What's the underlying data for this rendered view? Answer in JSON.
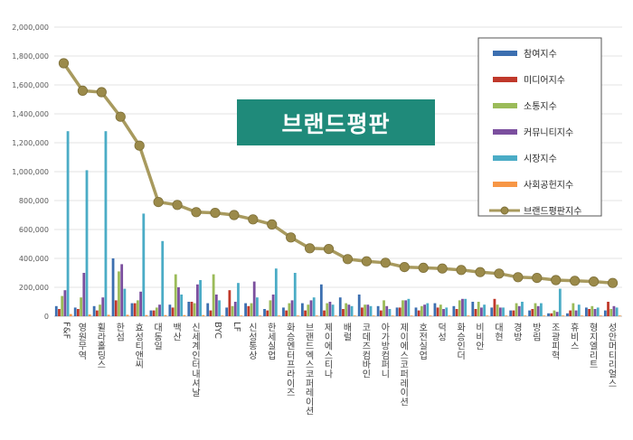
{
  "banner": {
    "text": "브랜드평판"
  },
  "chart_data": {
    "type": "bar",
    "title": "",
    "xlabel": "",
    "ylabel": "",
    "ylim": [
      0,
      2000000
    ],
    "yticks": [
      "0",
      "200,000",
      "400,000",
      "600,000",
      "800,000",
      "1,000,000",
      "1,200,000",
      "1,400,000",
      "1,600,000",
      "1,800,000",
      "2,000,000"
    ],
    "grid": true,
    "legend_position": "top-right",
    "categories": [
      "F&F",
      "영원무역",
      "휠라홀딩스",
      "한섬",
      "효성티앤씨",
      "대동일",
      "백산",
      "신세계인터내셔날",
      "BYC",
      "LF",
      "신성통상",
      "한세실업",
      "화승엔터프라이즈",
      "브랜드엑스코퍼레이션",
      "제이에스티나",
      "배럴",
      "코데즈컴바인",
      "아가방컴퍼니",
      "제이에스코퍼레이션",
      "호전실업",
      "덕성",
      "화승인더",
      "비비안",
      "대현",
      "경방",
      "방림",
      "조광피혁",
      "휴비스",
      "형지엘리트",
      "성안머티리얼스"
    ],
    "series": [
      {
        "name": "참여지수",
        "color": "#3c6fb0",
        "values": [
          70000,
          60000,
          70000,
          400000,
          90000,
          40000,
          80000,
          100000,
          90000,
          60000,
          90000,
          50000,
          60000,
          90000,
          220000,
          130000,
          150000,
          70000,
          60000,
          60000,
          90000,
          70000,
          100000,
          60000,
          40000,
          40000,
          20000,
          20000,
          60000,
          40000
        ]
      },
      {
        "name": "미디어지수",
        "color": "#c0392b",
        "values": [
          50000,
          50000,
          40000,
          110000,
          90000,
          40000,
          60000,
          100000,
          40000,
          180000,
          70000,
          40000,
          40000,
          40000,
          40000,
          50000,
          60000,
          40000,
          60000,
          40000,
          60000,
          50000,
          50000,
          120000,
          40000,
          50000,
          20000,
          40000,
          50000,
          100000
        ]
      },
      {
        "name": "소통지수",
        "color": "#9bbb59",
        "values": [
          140000,
          130000,
          80000,
          310000,
          110000,
          60000,
          290000,
          90000,
          290000,
          70000,
          90000,
          110000,
          90000,
          80000,
          90000,
          90000,
          80000,
          110000,
          110000,
          70000,
          80000,
          110000,
          100000,
          80000,
          90000,
          90000,
          40000,
          90000,
          70000,
          50000
        ]
      },
      {
        "name": "커뮤니티지수",
        "color": "#7b4f9e",
        "values": [
          180000,
          300000,
          130000,
          360000,
          170000,
          80000,
          200000,
          220000,
          150000,
          100000,
          240000,
          150000,
          110000,
          110000,
          100000,
          80000,
          80000,
          70000,
          110000,
          80000,
          50000,
          120000,
          60000,
          60000,
          70000,
          70000,
          30000,
          40000,
          50000,
          70000
        ]
      },
      {
        "name": "시장지수",
        "color": "#4bacc6",
        "values": [
          1280000,
          1010000,
          1280000,
          190000,
          710000,
          520000,
          150000,
          250000,
          110000,
          230000,
          130000,
          330000,
          300000,
          130000,
          80000,
          70000,
          70000,
          50000,
          120000,
          90000,
          60000,
          120000,
          80000,
          60000,
          100000,
          90000,
          190000,
          80000,
          60000,
          60000
        ]
      },
      {
        "name": "사회공헌지수",
        "color": "#f79646",
        "values": [
          15000,
          12000,
          10000,
          10000,
          8000,
          8000,
          8000,
          8000,
          5000,
          5000,
          5000,
          5000,
          5000,
          5000,
          5000,
          5000,
          5000,
          5000,
          5000,
          5000,
          5000,
          5000,
          5000,
          5000,
          5000,
          5000,
          5000,
          5000,
          5000,
          5000
        ]
      },
      {
        "name": "브랜드평판지수",
        "type": "line",
        "color": "#9b8a4a",
        "values": [
          1750000,
          1560000,
          1550000,
          1380000,
          1180000,
          790000,
          770000,
          720000,
          715000,
          700000,
          670000,
          635000,
          545000,
          470000,
          465000,
          395000,
          380000,
          370000,
          340000,
          335000,
          330000,
          320000,
          305000,
          295000,
          270000,
          265000,
          250000,
          245000,
          240000,
          230000
        ]
      }
    ]
  }
}
